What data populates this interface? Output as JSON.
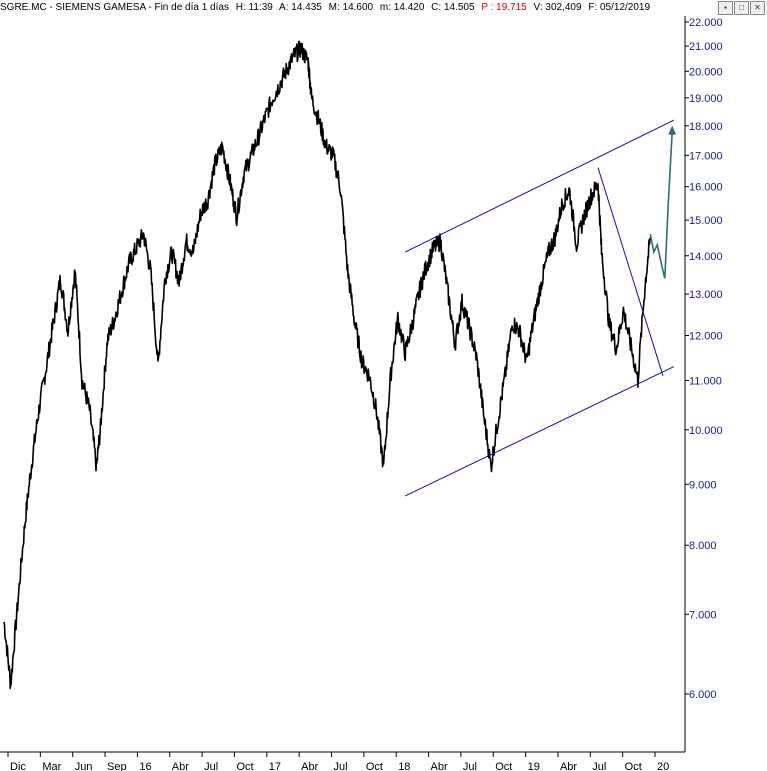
{
  "header": {
    "symbol": "SGRE.MC - SIEMENS GAMESA - Fin de día 1 días",
    "high": "H: 11:39",
    "open": "A: 14.435",
    "max": "M: 14.600",
    "min": "m: 14.420",
    "close": "C: 14.505",
    "p": "P : 19.715",
    "volume": "V: 302,409",
    "date": "F: 05/12/2019"
  },
  "colors": {
    "price": "#000000",
    "trendline": "#1010b0",
    "projection": "#2e6e6e",
    "yaxis_text": "#1a1a8c",
    "header_red": "#d10000"
  },
  "chart_data": {
    "type": "line",
    "title": "SGRE.MC - SIEMENS GAMESA",
    "scale": "log",
    "ylim": [
      5.6,
      22.5
    ],
    "y_ticks": [
      6,
      7,
      8,
      9,
      10,
      11,
      12,
      13,
      14,
      15,
      16,
      17,
      18,
      19,
      20,
      21,
      22
    ],
    "y_tick_labels": [
      "6.000",
      "7.000",
      "8.000",
      "9.000",
      "10.000",
      "11.000",
      "12.000",
      "13.000",
      "14.000",
      "15.000",
      "16.000",
      "17.000",
      "18.000",
      "19.000",
      "20.000",
      "21.000",
      "22.000"
    ],
    "x_ticks": [
      "Dic",
      "Mar",
      "Jun",
      "Sep",
      "16",
      "Abr",
      "Jul",
      "Oct",
      "17",
      "Abr",
      "Jul",
      "Oct",
      "18",
      "Abr",
      "Jul",
      "Oct",
      "19",
      "Abr",
      "Jul",
      "Oct",
      "20"
    ],
    "x_range": [
      "2014-12",
      "2020-03"
    ],
    "series": [
      {
        "x": [
          "2014-12-01",
          "2014-12-20",
          "2015-01-10",
          "2015-02-01",
          "2015-02-20",
          "2015-03-10",
          "2015-03-31",
          "2015-04-20",
          "2015-05-10",
          "2015-05-31",
          "2015-06-20",
          "2015-07-10",
          "2015-07-31",
          "2015-08-20",
          "2015-09-01",
          "2015-09-20",
          "2015-10-10",
          "2015-10-31",
          "2015-11-20",
          "2015-12-10",
          "2015-12-31",
          "2016-01-20",
          "2016-02-10",
          "2016-03-01",
          "2016-03-20",
          "2016-04-10",
          "2016-04-30",
          "2016-05-20",
          "2016-06-10",
          "2016-06-30",
          "2016-07-20",
          "2016-08-10",
          "2016-08-31",
          "2016-09-20",
          "2016-10-10",
          "2016-10-31",
          "2016-11-20",
          "2016-12-10",
          "2016-12-31",
          "2017-01-20",
          "2017-02-10",
          "2017-03-01",
          "2017-03-20",
          "2017-04-10",
          "2017-04-20",
          "2017-05-10",
          "2017-05-31",
          "2017-06-20",
          "2017-07-10",
          "2017-07-31",
          "2017-08-20",
          "2017-09-10",
          "2017-09-30",
          "2017-10-20",
          "2017-11-10",
          "2017-11-30",
          "2017-12-20",
          "2018-01-10",
          "2018-01-31",
          "2018-02-20",
          "2018-03-10",
          "2018-03-31",
          "2018-04-20",
          "2018-05-10",
          "2018-05-31",
          "2018-06-20",
          "2018-07-10",
          "2018-07-31",
          "2018-08-20",
          "2018-09-10",
          "2018-09-30",
          "2018-10-20",
          "2018-11-10",
          "2018-11-30",
          "2018-12-20",
          "2019-01-10",
          "2019-01-31",
          "2019-02-20",
          "2019-03-10",
          "2019-03-31",
          "2019-04-20",
          "2019-05-10",
          "2019-05-31",
          "2019-06-20",
          "2019-07-10",
          "2019-07-20",
          "2019-08-10",
          "2019-08-31",
          "2019-09-20",
          "2019-10-10",
          "2019-10-31",
          "2019-11-20",
          "2019-12-05"
        ],
        "values": [
          6.9,
          6.1,
          7.2,
          8.5,
          9.5,
          10.4,
          11.3,
          12.3,
          13.4,
          12.1,
          13.6,
          11.0,
          10.4,
          9.3,
          10.1,
          11.9,
          12.4,
          13.1,
          13.8,
          14.2,
          14.6,
          13.6,
          11.3,
          13.4,
          14.1,
          13.3,
          14.4,
          14.1,
          15.2,
          15.6,
          16.7,
          17.3,
          16.2,
          15.1,
          16.4,
          17.0,
          17.6,
          18.3,
          19.0,
          19.5,
          20.1,
          20.6,
          20.9,
          20.4,
          19.0,
          18.2,
          17.3,
          17.0,
          16.0,
          13.6,
          12.3,
          11.4,
          11.1,
          10.4,
          9.3,
          11.1,
          12.4,
          11.6,
          12.3,
          13.1,
          13.7,
          14.2,
          14.4,
          13.1,
          11.8,
          12.8,
          12.2,
          11.5,
          10.3,
          9.3,
          10.2,
          11.1,
          12.3,
          12.1,
          11.4,
          12.4,
          13.3,
          14.1,
          14.5,
          15.5,
          15.9,
          14.3,
          15.1,
          15.7,
          16.1,
          14.1,
          12.3,
          11.7,
          12.6,
          11.8,
          11.0,
          13.2,
          14.5
        ]
      }
    ],
    "trendlines": [
      {
        "from": [
          "2018-01-10",
          14.1
        ],
        "to": [
          "2020-02-10",
          18.2
        ]
      },
      {
        "from": [
          "2018-01-10",
          8.8
        ],
        "to": [
          "2020-02-10",
          11.3
        ]
      },
      {
        "from": [
          "2019-07-10",
          16.6
        ],
        "to": [
          "2020-01-10",
          11.1
        ]
      }
    ],
    "projection": {
      "x": [
        "2019-12-05",
        "2019-12-15",
        "2019-12-25",
        "2020-01-05",
        "2020-01-15",
        "2020-01-25",
        "2020-02-05"
      ],
      "values": [
        14.6,
        14.1,
        14.3,
        13.8,
        13.4,
        15.5,
        17.8
      ]
    },
    "grid": false
  }
}
